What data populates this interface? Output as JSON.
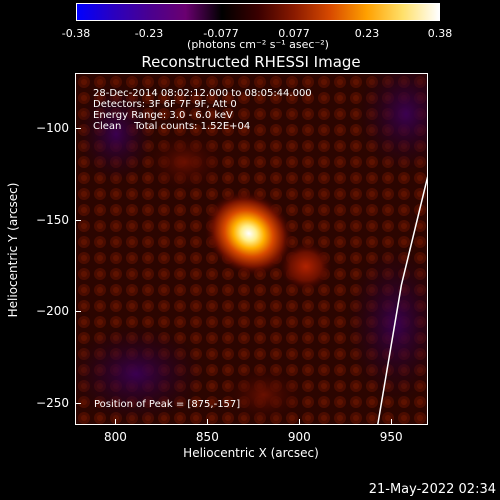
{
  "colorbar": {
    "ticks": [
      "-0.38",
      "-0.23",
      "-0.077",
      "0.077",
      "0.23",
      "0.38"
    ],
    "units": "(photons cm⁻² s⁻¹ asec⁻²)",
    "colormap": [
      "#0000ff",
      "#2a00c0",
      "#4a0090",
      "#6a0070",
      "#000000",
      "#3a0000",
      "#8a1a00",
      "#d84a00",
      "#ffa000",
      "#ffe06a",
      "#ffffff"
    ]
  },
  "annotation": {
    "time_range": "28-Dec-2014 08:02:12.000 to 08:05:44.000",
    "detectors": "Detectors: 3F 6F 7F 9F, Att 0",
    "energy": "Energy Range: 3.0 - 6.0 keV",
    "clean": "Clean    Total counts: 1.52E+04",
    "peak": "Position of Peak = [875,-157]"
  },
  "footer_date": "21-May-2022 02:34",
  "chart_data": {
    "type": "heatmap",
    "title": "Reconstructed RHESSI Image",
    "xlabel": "Heliocentric X (arcsec)",
    "ylabel": "Heliocentric Y (arcsec)",
    "xlim": [
      778,
      970
    ],
    "ylim": [
      -262,
      -70
    ],
    "xticks": [
      800,
      850,
      900,
      950
    ],
    "yticks": [
      -100,
      -150,
      -200,
      -250
    ],
    "value_range": [
      -0.38,
      0.38
    ],
    "sources": [
      {
        "x": 872,
        "y": -157,
        "value": 0.38
      },
      {
        "x": 903,
        "y": -175,
        "value": 0.12
      },
      {
        "x": 837,
        "y": -118,
        "value": 0.05
      },
      {
        "x": 880,
        "y": -245,
        "value": 0.04
      }
    ],
    "peak": [
      875,
      -157
    ],
    "limb_line": [
      [
        970,
        -123
      ],
      [
        955,
        -185
      ],
      [
        942,
        -262
      ]
    ]
  }
}
